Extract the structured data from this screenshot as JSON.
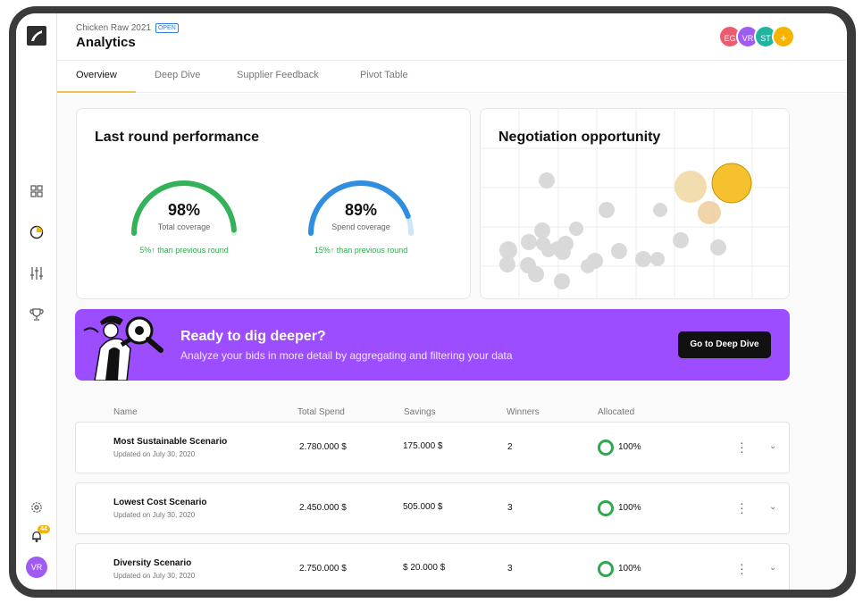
{
  "app": {
    "project_name": "Chicken Raw 2021",
    "project_status": "OPEN",
    "page_title": "Analytics"
  },
  "sidebar": {
    "icons": [
      "logo-icon",
      "grid-icon",
      "pie-chart-icon",
      "sliders-icon",
      "trophy-icon",
      "gear-icon",
      "bell-icon"
    ],
    "notification_count": "44",
    "user_initials": "VR"
  },
  "collaborators": [
    {
      "initials": "EG",
      "color": "#ef5b6e"
    },
    {
      "initials": "VR",
      "color": "#a05cf0"
    },
    {
      "initials": "ST",
      "color": "#1fb5a0"
    },
    {
      "initials": "+",
      "color": "#f6b300"
    }
  ],
  "tabs": [
    {
      "label": "Overview",
      "active": true
    },
    {
      "label": "Deep Dive",
      "active": false
    },
    {
      "label": "Supplier Feedback",
      "active": false
    },
    {
      "label": "Pivot Table",
      "active": false
    }
  ],
  "performance": {
    "title": "Last round performance",
    "gauges": [
      {
        "value": "98%",
        "fraction": 0.98,
        "label": "Total coverage",
        "delta": "5%↑ than previous round",
        "color": "#34b25a"
      },
      {
        "value": "89%",
        "fraction": 0.89,
        "label": "Spend coverage",
        "delta": "15%↑ than previous round",
        "color": "#2f8ee0"
      }
    ]
  },
  "negotiation": {
    "title": "Negotiation opportunity"
  },
  "banner": {
    "title": "Ready to dig deeper?",
    "subtitle": "Analyze your bids in more detail by aggregating and filtering your data",
    "button_label": "Go to Deep Dive"
  },
  "table": {
    "headers": [
      "Name",
      "Total Spend",
      "Savings",
      "Winners",
      "Allocated"
    ],
    "rows": [
      {
        "name": "Most Sustainable Scenario",
        "updated": "Updated on July 30, 2020",
        "total_spend": "2.780.000 $",
        "savings": "175.000 $",
        "winners": "2",
        "allocated": "100%"
      },
      {
        "name": "Lowest Cost Scenario",
        "updated": "Updated on July 30, 2020",
        "total_spend": "2.450.000 $",
        "savings": "505.000 $",
        "winners": "3",
        "allocated": "100%"
      },
      {
        "name": "Diversity Scenario",
        "updated": "Updated on July 30, 2020",
        "total_spend": "2.750.000 $",
        "savings": "$ 20.000 $",
        "winners": "3",
        "allocated": "100%"
      }
    ]
  }
}
